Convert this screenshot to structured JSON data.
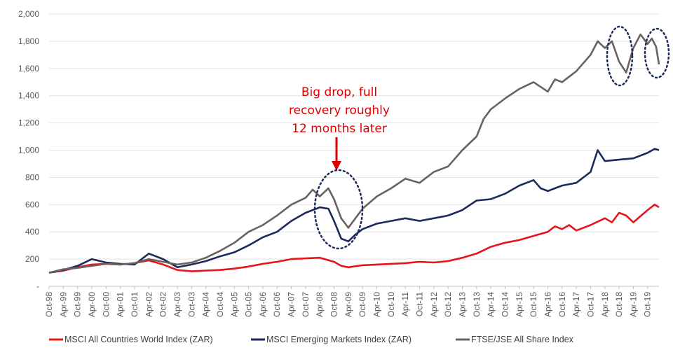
{
  "chart_data": {
    "type": "line",
    "y_ticks": [
      "2,000",
      "1,800",
      "1,600",
      "1,400",
      "1,200",
      "1,000",
      "800",
      "600",
      "400",
      "200",
      "-"
    ],
    "ylim": [
      0,
      2000
    ],
    "x_ticks": [
      "Oct-98",
      "Apr-99",
      "Oct-99",
      "Apr-00",
      "Oct-00",
      "Apr-01",
      "Oct-01",
      "Apr-02",
      "Oct-02",
      "Apr-03",
      "Oct-03",
      "Apr-04",
      "Oct-04",
      "Apr-05",
      "Oct-05",
      "Apr-06",
      "Oct-06",
      "Apr-07",
      "Oct-07",
      "Apr-08",
      "Oct-08",
      "Apr-09",
      "Oct-09",
      "Apr-10",
      "Oct-10",
      "Apr-11",
      "Oct-11",
      "Apr-12",
      "Oct-12",
      "Apr-13",
      "Oct-13",
      "Apr-14",
      "Oct-14",
      "Apr-15",
      "Oct-15",
      "Apr-16",
      "Oct-16",
      "Apr-17",
      "Oct-17",
      "Apr-18",
      "Oct-18",
      "Apr-19",
      "Oct-19"
    ],
    "xlim": [
      0,
      42.8
    ],
    "grid": "horizontal",
    "legend_position": "bottom",
    "series": [
      {
        "name": "MSCI All Countries World Index (ZAR)",
        "color": "#e8141a",
        "points": [
          [
            0,
            100
          ],
          [
            1,
            115
          ],
          [
            2,
            140
          ],
          [
            3,
            160
          ],
          [
            4,
            165
          ],
          [
            5,
            160
          ],
          [
            6,
            170
          ],
          [
            7,
            190
          ],
          [
            8,
            160
          ],
          [
            9,
            120
          ],
          [
            10,
            110
          ],
          [
            11,
            115
          ],
          [
            12,
            120
          ],
          [
            13,
            130
          ],
          [
            14,
            145
          ],
          [
            15,
            165
          ],
          [
            16,
            180
          ],
          [
            17,
            200
          ],
          [
            18,
            205
          ],
          [
            19,
            210
          ],
          [
            20,
            180
          ],
          [
            20.5,
            150
          ],
          [
            21,
            140
          ],
          [
            22,
            155
          ],
          [
            23,
            160
          ],
          [
            24,
            165
          ],
          [
            25,
            170
          ],
          [
            26,
            180
          ],
          [
            27,
            175
          ],
          [
            28,
            185
          ],
          [
            29,
            210
          ],
          [
            30,
            240
          ],
          [
            31,
            290
          ],
          [
            32,
            320
          ],
          [
            33,
            340
          ],
          [
            34,
            370
          ],
          [
            35,
            400
          ],
          [
            35.5,
            440
          ],
          [
            36,
            420
          ],
          [
            36.5,
            450
          ],
          [
            37,
            410
          ],
          [
            38,
            450
          ],
          [
            39,
            500
          ],
          [
            39.5,
            470
          ],
          [
            40,
            540
          ],
          [
            40.5,
            520
          ],
          [
            41,
            470
          ],
          [
            42,
            560
          ],
          [
            42.5,
            600
          ],
          [
            42.8,
            580
          ]
        ]
      },
      {
        "name": "MSCI Emerging Markets Index (ZAR)",
        "color": "#1c2a5c",
        "points": [
          [
            0,
            100
          ],
          [
            1,
            120
          ],
          [
            2,
            150
          ],
          [
            3,
            200
          ],
          [
            4,
            175
          ],
          [
            5,
            165
          ],
          [
            6,
            160
          ],
          [
            7,
            240
          ],
          [
            8,
            200
          ],
          [
            9,
            140
          ],
          [
            10,
            160
          ],
          [
            11,
            185
          ],
          [
            12,
            220
          ],
          [
            13,
            250
          ],
          [
            14,
            300
          ],
          [
            15,
            360
          ],
          [
            16,
            400
          ],
          [
            17,
            480
          ],
          [
            18,
            540
          ],
          [
            19,
            580
          ],
          [
            19.6,
            570
          ],
          [
            20,
            480
          ],
          [
            20.5,
            350
          ],
          [
            21,
            330
          ],
          [
            21.5,
            380
          ],
          [
            22,
            420
          ],
          [
            23,
            460
          ],
          [
            24,
            480
          ],
          [
            25,
            500
          ],
          [
            26,
            480
          ],
          [
            27,
            500
          ],
          [
            28,
            520
          ],
          [
            29,
            560
          ],
          [
            30,
            630
          ],
          [
            31,
            640
          ],
          [
            32,
            680
          ],
          [
            33,
            740
          ],
          [
            34,
            780
          ],
          [
            34.5,
            720
          ],
          [
            35,
            700
          ],
          [
            36,
            740
          ],
          [
            37,
            760
          ],
          [
            38,
            840
          ],
          [
            38.5,
            1000
          ],
          [
            39,
            920
          ],
          [
            40,
            930
          ],
          [
            41,
            940
          ],
          [
            42,
            980
          ],
          [
            42.5,
            1010
          ],
          [
            42.8,
            1000
          ]
        ]
      },
      {
        "name": "FTSE/JSE All Share Index",
        "color": "#6b625e",
        "points": [
          [
            0,
            100
          ],
          [
            1,
            125
          ],
          [
            2,
            135
          ],
          [
            3,
            150
          ],
          [
            4,
            165
          ],
          [
            5,
            160
          ],
          [
            6,
            170
          ],
          [
            7,
            200
          ],
          [
            8,
            180
          ],
          [
            9,
            160
          ],
          [
            10,
            175
          ],
          [
            11,
            210
          ],
          [
            12,
            260
          ],
          [
            13,
            320
          ],
          [
            14,
            400
          ],
          [
            15,
            450
          ],
          [
            16,
            520
          ],
          [
            17,
            600
          ],
          [
            18,
            650
          ],
          [
            18.5,
            710
          ],
          [
            19,
            660
          ],
          [
            19.6,
            720
          ],
          [
            20,
            640
          ],
          [
            20.5,
            500
          ],
          [
            21,
            430
          ],
          [
            21.5,
            500
          ],
          [
            22,
            570
          ],
          [
            23,
            660
          ],
          [
            24,
            720
          ],
          [
            25,
            790
          ],
          [
            26,
            760
          ],
          [
            27,
            840
          ],
          [
            28,
            880
          ],
          [
            29,
            1000
          ],
          [
            30,
            1100
          ],
          [
            30.5,
            1230
          ],
          [
            31,
            1300
          ],
          [
            32,
            1380
          ],
          [
            33,
            1450
          ],
          [
            34,
            1500
          ],
          [
            35,
            1430
          ],
          [
            35.5,
            1520
          ],
          [
            36,
            1500
          ],
          [
            37,
            1580
          ],
          [
            38,
            1700
          ],
          [
            38.5,
            1800
          ],
          [
            39,
            1750
          ],
          [
            39.5,
            1800
          ],
          [
            40,
            1650
          ],
          [
            40.5,
            1570
          ],
          [
            41,
            1750
          ],
          [
            41.5,
            1850
          ],
          [
            42,
            1780
          ],
          [
            42.3,
            1820
          ],
          [
            42.6,
            1760
          ],
          [
            42.8,
            1630
          ]
        ]
      }
    ],
    "annotations": [
      {
        "text_lines": [
          "Big drop, full",
          "recovery roughly",
          "12 months later"
        ],
        "color": "#e00000"
      }
    ]
  }
}
